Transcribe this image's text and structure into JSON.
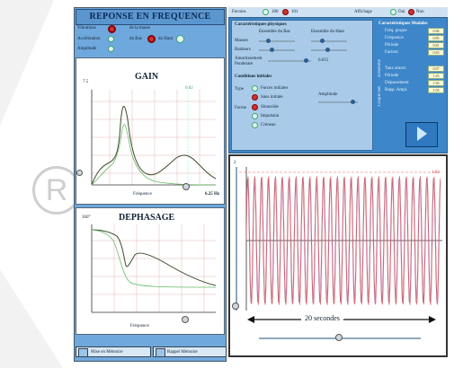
{
  "left": {
    "title": "REPONSE EN FREQUENCE",
    "modes": [
      "Vibrations",
      "Accélération",
      "Amplitude"
    ],
    "opt_forcee": "de la masse",
    "opt_bas": "du Bas",
    "opt_haut": "du Haut",
    "gain": {
      "title": "GAIN",
      "y_label": "7.5",
      "marker": "0.82",
      "x_label": "Fréquence",
      "x_value": "6.25 Hz"
    },
    "phase": {
      "title": "DEPHASAGE",
      "y_label": "360°",
      "x_label": "Fréquence"
    },
    "buttons": {
      "memorize": "Mise en Mémoire",
      "recall": "Rappel Mémoire"
    }
  },
  "top": {
    "mode_label": "Forcées",
    "opt1": "100",
    "opt2": "101",
    "affichage_label": "Affichage",
    "affichage_opt1": "Oui",
    "affichage_opt2": "Non"
  },
  "physique": {
    "title": "Caractéristiques physiques",
    "col1": "Ensemble du Bas",
    "col2": "Ensemble du Haut",
    "rows": [
      "Masses",
      "Raideurs",
      "Amortissement",
      "Ponderate"
    ],
    "amort_value": "0.015"
  },
  "initial": {
    "title": "Conditions initiales",
    "type_label": "Type",
    "type_opts": [
      "Forces initiales",
      "Sans initiale"
    ],
    "forme_label": "Forme",
    "forme_opts": [
      "Sinusoïde",
      "Impulsion",
      "Créneau"
    ],
    "amplitude_label": "Amplitude"
  },
  "results": {
    "title": "Caractéristiques Modales",
    "side1": "Ensemble",
    "side2": "Couple bas",
    "rows": [
      {
        "label": "Fréq. propre",
        "value": "0.96"
      },
      {
        "label": "Fréquence",
        "value": "0.85"
      },
      {
        "label": "Période",
        "value": "0.81"
      },
      {
        "label": "Facteur",
        "value": "0.83"
      },
      {
        "label": "Taux amort.",
        "value": "0.07"
      },
      {
        "label": "Période",
        "value": "1.25"
      },
      {
        "label": "Dépassement",
        "value": "1.56"
      },
      {
        "label": "Rapp. Ampl.",
        "value": "1.03"
      }
    ]
  },
  "sim": {
    "y_label": "2",
    "top_value": "1.03",
    "duration": "20 secondes"
  }
}
